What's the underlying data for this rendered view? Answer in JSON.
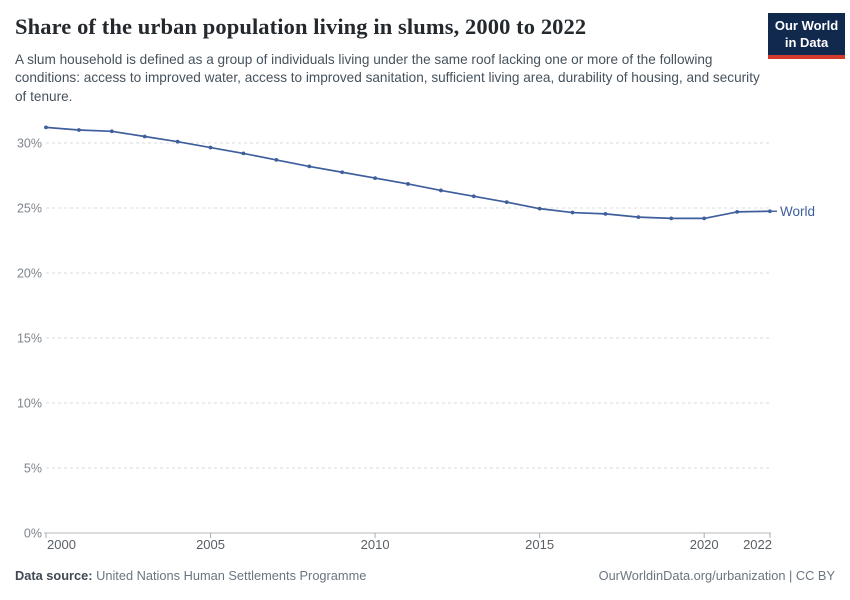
{
  "header": {
    "title": "Share of the urban population living in slums, 2000 to 2022",
    "subtitle": "A slum household is defined as a group of individuals living under the same roof lacking one or more of the following conditions: access to improved water, access to improved sanitation, sufficient living area, durability of housing, and security of tenure.",
    "logo": {
      "line1": "Our World",
      "line2": "in Data",
      "bg_color": "#12294e",
      "accent_color": "#d23a2e"
    }
  },
  "chart_data": {
    "type": "line",
    "title": "Share of the urban population living in slums, 2000 to 2022",
    "x": [
      2000,
      2001,
      2002,
      2003,
      2004,
      2005,
      2006,
      2007,
      2008,
      2009,
      2010,
      2011,
      2012,
      2013,
      2014,
      2015,
      2016,
      2017,
      2018,
      2019,
      2020,
      2021,
      2022
    ],
    "series": [
      {
        "name": "World",
        "color": "#3f5e9c",
        "values": [
          31.2,
          31.0,
          30.9,
          30.5,
          30.1,
          29.65,
          29.2,
          28.7,
          28.2,
          27.75,
          27.3,
          26.85,
          26.35,
          25.9,
          25.45,
          24.95,
          24.65,
          24.55,
          24.3,
          24.2,
          24.2,
          24.7,
          24.75
        ]
      }
    ],
    "xlim": [
      2000,
      2022
    ],
    "ylim": [
      0,
      31.5
    ],
    "xticks": [
      2000,
      2005,
      2010,
      2015,
      2020,
      2022
    ],
    "yticks": [
      0,
      5,
      10,
      15,
      20,
      25,
      30
    ],
    "ytick_labels": [
      "0%",
      "5%",
      "10%",
      "15%",
      "20%",
      "25%",
      "30%"
    ],
    "grid": "horizontal-dashed",
    "legend": "end-of-line-label",
    "colors": {
      "gridline": "#d9dbdd",
      "axis_line": "#b5b8bc",
      "tick_mark": "#a9adb2",
      "x_tick_label": "#5a6066",
      "y_tick_label": "#7e858c"
    }
  },
  "footer": {
    "source_label": "Data source:",
    "source": "United Nations Human Settlements Programme",
    "credit": "OurWorldinData.org/urbanization | CC BY"
  }
}
